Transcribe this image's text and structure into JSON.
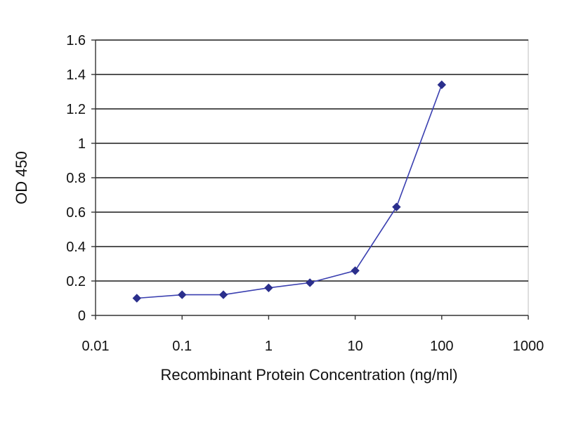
{
  "chart_data": {
    "type": "line",
    "title": "",
    "xlabel": "Recombinant Protein Concentration (ng/ml)",
    "ylabel": "OD 450",
    "xscale": "log",
    "xlim": [
      0.01,
      1000
    ],
    "ylim": [
      0,
      1.6
    ],
    "xticks": [
      0.01,
      0.1,
      1,
      10,
      100,
      1000
    ],
    "xtick_labels": [
      "0.01",
      "0.1",
      "1",
      "10",
      "100",
      "1000"
    ],
    "yticks": [
      0,
      0.2,
      0.4,
      0.6,
      0.8,
      1,
      1.2,
      1.4,
      1.6
    ],
    "ytick_labels": [
      "0",
      "0.2",
      "0.4",
      "0.6",
      "0.8",
      "1",
      "1.2",
      "1.4",
      "1.6"
    ],
    "grid": "horizontal",
    "legend": "none",
    "series": [
      {
        "x": [
          0.03,
          0.1,
          0.3,
          1,
          3,
          10,
          30,
          100
        ],
        "y": [
          0.1,
          0.12,
          0.12,
          0.16,
          0.19,
          0.26,
          0.63,
          1.34
        ],
        "color": "#2b2f8c",
        "marker": "diamond"
      }
    ]
  }
}
